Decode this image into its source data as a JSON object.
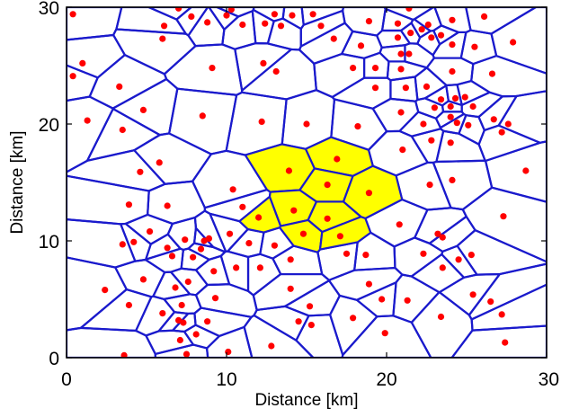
{
  "chart_data": {
    "type": "scatter",
    "title": "",
    "xlabel": "Distance [km]",
    "ylabel": "Distance [km]",
    "xlim": [
      0,
      30
    ],
    "ylim": [
      0,
      30
    ],
    "xticks": [
      "0",
      "10",
      "20",
      "30"
    ],
    "yticks": [
      "0",
      "10",
      "20",
      "30"
    ],
    "grid": false,
    "colors": {
      "points": "#ff0000",
      "cell_edges": "#1a1acc",
      "highlight_fill": "#ffff00",
      "axes": "#000000"
    },
    "overlay": "voronoi",
    "highlighted_cells": [
      {
        "x": 13.9,
        "y": 16.0
      },
      {
        "x": 16.9,
        "y": 17.0
      },
      {
        "x": 16.3,
        "y": 14.8
      },
      {
        "x": 18.9,
        "y": 14.1
      },
      {
        "x": 12.0,
        "y": 12.0
      },
      {
        "x": 14.2,
        "y": 12.6
      },
      {
        "x": 16.3,
        "y": 11.9
      },
      {
        "x": 14.8,
        "y": 10.6
      },
      {
        "x": 17.1,
        "y": 10.4
      }
    ],
    "points": [
      {
        "x": 0.4,
        "y": 29.4
      },
      {
        "x": 6.1,
        "y": 28.4
      },
      {
        "x": 7.0,
        "y": 29.9
      },
      {
        "x": 7.8,
        "y": 29.2
      },
      {
        "x": 10.0,
        "y": 29.3
      },
      {
        "x": 11.0,
        "y": 28.5
      },
      {
        "x": 10.3,
        "y": 29.8
      },
      {
        "x": 13.0,
        "y": 29.4
      },
      {
        "x": 14.1,
        "y": 29.3
      },
      {
        "x": 15.4,
        "y": 29.4
      },
      {
        "x": 18.9,
        "y": 28.8
      },
      {
        "x": 20.7,
        "y": 28.6
      },
      {
        "x": 22.6,
        "y": 28.5
      },
      {
        "x": 24.1,
        "y": 28.9
      },
      {
        "x": 26.1,
        "y": 29.2
      },
      {
        "x": 21.4,
        "y": 29.9
      },
      {
        "x": 6.0,
        "y": 27.3
      },
      {
        "x": 8.8,
        "y": 28.7
      },
      {
        "x": 12.4,
        "y": 28.6
      },
      {
        "x": 13.4,
        "y": 28.4
      },
      {
        "x": 15.9,
        "y": 28.4
      },
      {
        "x": 16.7,
        "y": 27.3
      },
      {
        "x": 18.4,
        "y": 26.7
      },
      {
        "x": 20.7,
        "y": 27.4
      },
      {
        "x": 21.5,
        "y": 27.8
      },
      {
        "x": 22.2,
        "y": 28.1
      },
      {
        "x": 23.4,
        "y": 27.6
      },
      {
        "x": 22.8,
        "y": 27.4
      },
      {
        "x": 24.1,
        "y": 26.8
      },
      {
        "x": 25.5,
        "y": 26.6
      },
      {
        "x": 27.9,
        "y": 27.0
      },
      {
        "x": 21.4,
        "y": 26.0
      },
      {
        "x": 20.9,
        "y": 26.0
      },
      {
        "x": 1.0,
        "y": 25.2
      },
      {
        "x": 0.4,
        "y": 24.1
      },
      {
        "x": 3.3,
        "y": 23.2
      },
      {
        "x": 9.1,
        "y": 24.8
      },
      {
        "x": 12.3,
        "y": 25.2
      },
      {
        "x": 13.1,
        "y": 24.5
      },
      {
        "x": 17.9,
        "y": 24.8
      },
      {
        "x": 19.3,
        "y": 24.8
      },
      {
        "x": 20.9,
        "y": 24.7
      },
      {
        "x": 24.1,
        "y": 24.5
      },
      {
        "x": 26.6,
        "y": 24.3
      },
      {
        "x": 19.3,
        "y": 23.1
      },
      {
        "x": 21.2,
        "y": 23.1
      },
      {
        "x": 22.5,
        "y": 23.2
      },
      {
        "x": 23.4,
        "y": 22.1
      },
      {
        "x": 24.0,
        "y": 21.5
      },
      {
        "x": 24.3,
        "y": 22.2
      },
      {
        "x": 24.9,
        "y": 22.3
      },
      {
        "x": 25.4,
        "y": 21.5
      },
      {
        "x": 4.8,
        "y": 21.2
      },
      {
        "x": 1.3,
        "y": 20.3
      },
      {
        "x": 3.5,
        "y": 19.5
      },
      {
        "x": 8.5,
        "y": 20.7
      },
      {
        "x": 12.2,
        "y": 20.2
      },
      {
        "x": 15.0,
        "y": 20.0
      },
      {
        "x": 18.2,
        "y": 19.8
      },
      {
        "x": 20.9,
        "y": 21.0
      },
      {
        "x": 22.3,
        "y": 20.0
      },
      {
        "x": 23.0,
        "y": 21.4
      },
      {
        "x": 24.0,
        "y": 20.6
      },
      {
        "x": 24.4,
        "y": 20.1
      },
      {
        "x": 25.1,
        "y": 19.9
      },
      {
        "x": 26.7,
        "y": 20.4
      },
      {
        "x": 27.6,
        "y": 20.0
      },
      {
        "x": 27.2,
        "y": 19.3
      },
      {
        "x": 22.8,
        "y": 18.6
      },
      {
        "x": 24.0,
        "y": 18.4
      },
      {
        "x": 21.0,
        "y": 17.8
      },
      {
        "x": 4.6,
        "y": 15.9
      },
      {
        "x": 5.8,
        "y": 16.7
      },
      {
        "x": 28.7,
        "y": 16.0
      },
      {
        "x": 24.1,
        "y": 15.2
      },
      {
        "x": 22.7,
        "y": 14.8
      },
      {
        "x": 10.4,
        "y": 14.4
      },
      {
        "x": 3.9,
        "y": 13.1
      },
      {
        "x": 6.3,
        "y": 13.0
      },
      {
        "x": 11.0,
        "y": 12.9
      },
      {
        "x": 20.8,
        "y": 11.4
      },
      {
        "x": 27.3,
        "y": 12.1
      },
      {
        "x": 3.5,
        "y": 9.7
      },
      {
        "x": 4.2,
        "y": 9.9
      },
      {
        "x": 5.2,
        "y": 10.8
      },
      {
        "x": 6.3,
        "y": 9.4
      },
      {
        "x": 7.4,
        "y": 10.1
      },
      {
        "x": 8.4,
        "y": 9.3
      },
      {
        "x": 8.6,
        "y": 10.0
      },
      {
        "x": 8.9,
        "y": 10.2
      },
      {
        "x": 10.2,
        "y": 10.6
      },
      {
        "x": 11.4,
        "y": 9.8
      },
      {
        "x": 13.0,
        "y": 9.6
      },
      {
        "x": 23.2,
        "y": 10.6
      },
      {
        "x": 23.5,
        "y": 10.3
      },
      {
        "x": 6.6,
        "y": 8.7
      },
      {
        "x": 7.9,
        "y": 8.6
      },
      {
        "x": 9.2,
        "y": 7.4
      },
      {
        "x": 10.6,
        "y": 7.7
      },
      {
        "x": 12.1,
        "y": 7.7
      },
      {
        "x": 14.0,
        "y": 8.4
      },
      {
        "x": 17.5,
        "y": 8.9
      },
      {
        "x": 18.7,
        "y": 8.8
      },
      {
        "x": 22.3,
        "y": 8.9
      },
      {
        "x": 23.5,
        "y": 7.7
      },
      {
        "x": 24.5,
        "y": 8.4
      },
      {
        "x": 25.3,
        "y": 8.8
      },
      {
        "x": 14.0,
        "y": 5.9
      },
      {
        "x": 4.8,
        "y": 6.7
      },
      {
        "x": 6.8,
        "y": 6.0
      },
      {
        "x": 7.6,
        "y": 6.5
      },
      {
        "x": 18.9,
        "y": 6.3
      },
      {
        "x": 25.4,
        "y": 5.4
      },
      {
        "x": 2.4,
        "y": 5.8
      },
      {
        "x": 3.9,
        "y": 4.5
      },
      {
        "x": 7.2,
        "y": 4.5
      },
      {
        "x": 9.3,
        "y": 5.1
      },
      {
        "x": 19.7,
        "y": 5.0
      },
      {
        "x": 21.3,
        "y": 4.9
      },
      {
        "x": 26.5,
        "y": 4.8
      },
      {
        "x": 6.0,
        "y": 3.8
      },
      {
        "x": 15.2,
        "y": 4.4
      },
      {
        "x": 7.0,
        "y": 3.2
      },
      {
        "x": 7.3,
        "y": 3.0
      },
      {
        "x": 8.8,
        "y": 3.1
      },
      {
        "x": 14.5,
        "y": 3.1
      },
      {
        "x": 15.3,
        "y": 2.8
      },
      {
        "x": 17.9,
        "y": 3.4
      },
      {
        "x": 23.4,
        "y": 3.5
      },
      {
        "x": 27.2,
        "y": 3.7
      },
      {
        "x": 8.1,
        "y": 2.0
      },
      {
        "x": 19.9,
        "y": 2.1
      },
      {
        "x": 7.1,
        "y": 1.5
      },
      {
        "x": 12.8,
        "y": 1.0
      },
      {
        "x": 10.1,
        "y": 0.5
      },
      {
        "x": 27.4,
        "y": 1.3
      },
      {
        "x": 7.5,
        "y": 0.3
      },
      {
        "x": 3.6,
        "y": 0.2
      }
    ]
  }
}
